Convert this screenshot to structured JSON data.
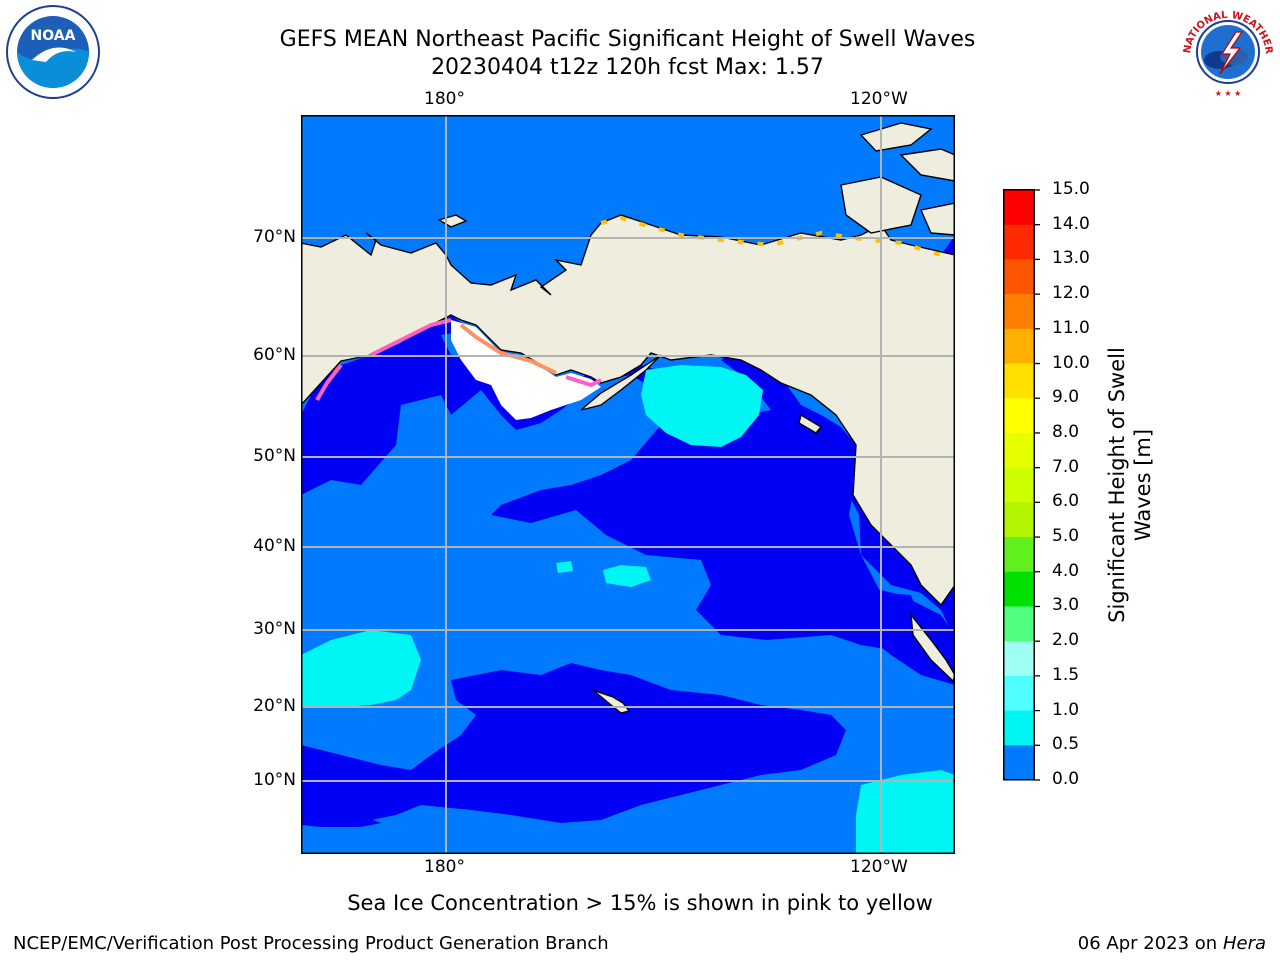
{
  "header": {
    "title_line1": "GEFS MEAN Northeast Pacific Significant Height of Swell Waves",
    "title_line2": "20230404 t12z 120h fcst   Max: 1.57"
  },
  "map": {
    "lon_labels": [
      "180°",
      "120°W"
    ],
    "lat_labels": [
      "70°N",
      "60°N",
      "50°N",
      "40°N",
      "30°N",
      "20°N",
      "10°N"
    ],
    "colors": {
      "land": "#efedde",
      "sea_0_05": "#0000f5",
      "sea_05_10": "#007bff",
      "sea_10_15": "#00f5f5",
      "sea_ice": "#ff60c0",
      "grid": "#b3b3b3"
    }
  },
  "colorbar": {
    "title": "Significant Height of Swell Waves [m]",
    "title_line1": "Significant Height of Swell",
    "title_line2": "Waves [m]",
    "ticks": [
      "15.0",
      "14.0",
      "13.0",
      "12.0",
      "11.0",
      "10.0",
      "9.0",
      "8.0",
      "7.0",
      "6.0",
      "5.0",
      "4.0",
      "3.0",
      "2.0",
      "1.5",
      "1.0",
      "0.5",
      "0.0"
    ],
    "colors_top_to_bottom": [
      "#ff0000",
      "#ff2a00",
      "#ff5500",
      "#ff8000",
      "#ffb000",
      "#ffe000",
      "#ffff00",
      "#e6ff00",
      "#ccff00",
      "#b3f500",
      "#60f020",
      "#00e000",
      "#50ff80",
      "#a0fff5",
      "#50ffff",
      "#00f5f5",
      "#007bff",
      "#0000f5"
    ]
  },
  "caption": "Sea Ice Concentration > 15% is shown in pink to yellow",
  "footer": {
    "credit": "NCEP/EMC/Verification Post Processing Product Generation Branch",
    "date_prefix": "06 Apr 2023 on",
    "date_machine": "Hera"
  },
  "logos": {
    "noaa": {
      "text": "NOAA",
      "icon": "noaa-logo-icon"
    },
    "nws": {
      "text": "NATIONAL WEATHER SERVICE",
      "icon": "nws-logo-icon"
    }
  }
}
